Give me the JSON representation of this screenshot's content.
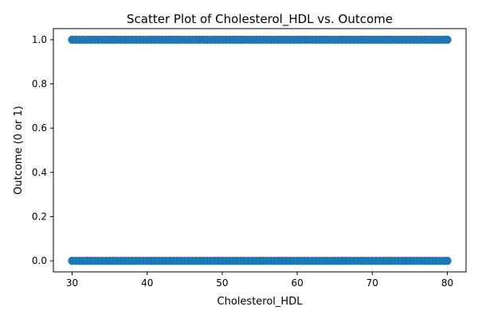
{
  "chart_data": {
    "type": "scatter",
    "title": "Scatter Plot of Cholesterol_HDL vs. Outcome",
    "xlabel": "Cholesterol_HDL",
    "ylabel": "Outcome (0 or 1)",
    "xlim": [
      27.5,
      82.5
    ],
    "ylim": [
      -0.05,
      1.05
    ],
    "xticks": [
      30,
      40,
      50,
      60,
      70,
      80
    ],
    "yticks": [
      0.0,
      0.2,
      0.4,
      0.6,
      0.8,
      1.0
    ],
    "ytick_labels": [
      "0.0",
      "0.2",
      "0.4",
      "0.6",
      "0.8",
      "1.0"
    ],
    "grid": false,
    "marker_color": "#1f77b4",
    "series": [
      {
        "note_range": "points densely cover x from 30 to 80 at both outcome levels",
        "points": [
          [
            30.0,
            0
          ],
          [
            30.5,
            0
          ],
          [
            31.0,
            0
          ],
          [
            31.5,
            0
          ],
          [
            32.0,
            0
          ],
          [
            32.5,
            0
          ],
          [
            33.0,
            0
          ],
          [
            33.5,
            0
          ],
          [
            34.0,
            0
          ],
          [
            34.5,
            0
          ],
          [
            35.0,
            0
          ],
          [
            35.5,
            0
          ],
          [
            36.0,
            0
          ],
          [
            36.5,
            0
          ],
          [
            37.0,
            0
          ],
          [
            37.5,
            0
          ],
          [
            38.0,
            0
          ],
          [
            38.5,
            0
          ],
          [
            39.0,
            0
          ],
          [
            39.5,
            0
          ],
          [
            40.0,
            0
          ],
          [
            40.5,
            0
          ],
          [
            41.0,
            0
          ],
          [
            41.5,
            0
          ],
          [
            42.0,
            0
          ],
          [
            42.5,
            0
          ],
          [
            43.0,
            0
          ],
          [
            43.5,
            0
          ],
          [
            44.0,
            0
          ],
          [
            44.5,
            0
          ],
          [
            45.0,
            0
          ],
          [
            45.5,
            0
          ],
          [
            46.0,
            0
          ],
          [
            46.5,
            0
          ],
          [
            47.0,
            0
          ],
          [
            47.5,
            0
          ],
          [
            48.0,
            0
          ],
          [
            48.5,
            0
          ],
          [
            49.0,
            0
          ],
          [
            49.5,
            0
          ],
          [
            50.0,
            0
          ],
          [
            50.5,
            0
          ],
          [
            51.0,
            0
          ],
          [
            51.5,
            0
          ],
          [
            52.0,
            0
          ],
          [
            52.5,
            0
          ],
          [
            53.0,
            0
          ],
          [
            53.5,
            0
          ],
          [
            54.0,
            0
          ],
          [
            54.5,
            0
          ],
          [
            55.0,
            0
          ],
          [
            55.5,
            0
          ],
          [
            56.0,
            0
          ],
          [
            56.5,
            0
          ],
          [
            57.0,
            0
          ],
          [
            57.5,
            0
          ],
          [
            58.0,
            0
          ],
          [
            58.5,
            0
          ],
          [
            59.0,
            0
          ],
          [
            59.5,
            0
          ],
          [
            60.0,
            0
          ],
          [
            60.5,
            0
          ],
          [
            61.0,
            0
          ],
          [
            61.5,
            0
          ],
          [
            62.0,
            0
          ],
          [
            62.5,
            0
          ],
          [
            63.0,
            0
          ],
          [
            63.5,
            0
          ],
          [
            64.0,
            0
          ],
          [
            64.5,
            0
          ],
          [
            65.0,
            0
          ],
          [
            65.5,
            0
          ],
          [
            66.0,
            0
          ],
          [
            66.5,
            0
          ],
          [
            67.0,
            0
          ],
          [
            67.5,
            0
          ],
          [
            68.0,
            0
          ],
          [
            68.5,
            0
          ],
          [
            69.0,
            0
          ],
          [
            69.5,
            0
          ],
          [
            70.0,
            0
          ],
          [
            70.5,
            0
          ],
          [
            71.0,
            0
          ],
          [
            71.5,
            0
          ],
          [
            72.0,
            0
          ],
          [
            72.5,
            0
          ],
          [
            73.0,
            0
          ],
          [
            73.5,
            0
          ],
          [
            74.0,
            0
          ],
          [
            74.5,
            0
          ],
          [
            75.0,
            0
          ],
          [
            75.5,
            0
          ],
          [
            76.0,
            0
          ],
          [
            76.5,
            0
          ],
          [
            77.0,
            0
          ],
          [
            77.5,
            0
          ],
          [
            78.0,
            0
          ],
          [
            78.5,
            0
          ],
          [
            79.0,
            0
          ],
          [
            79.5,
            0
          ],
          [
            80.0,
            0
          ],
          [
            30.0,
            1
          ],
          [
            30.5,
            1
          ],
          [
            31.0,
            1
          ],
          [
            31.5,
            1
          ],
          [
            32.0,
            1
          ],
          [
            32.5,
            1
          ],
          [
            33.0,
            1
          ],
          [
            33.5,
            1
          ],
          [
            34.0,
            1
          ],
          [
            34.5,
            1
          ],
          [
            35.0,
            1
          ],
          [
            35.5,
            1
          ],
          [
            36.0,
            1
          ],
          [
            36.5,
            1
          ],
          [
            37.0,
            1
          ],
          [
            37.5,
            1
          ],
          [
            38.0,
            1
          ],
          [
            38.5,
            1
          ],
          [
            39.0,
            1
          ],
          [
            39.5,
            1
          ],
          [
            40.0,
            1
          ],
          [
            40.5,
            1
          ],
          [
            41.0,
            1
          ],
          [
            41.5,
            1
          ],
          [
            42.0,
            1
          ],
          [
            42.5,
            1
          ],
          [
            43.0,
            1
          ],
          [
            43.5,
            1
          ],
          [
            44.0,
            1
          ],
          [
            44.5,
            1
          ],
          [
            45.0,
            1
          ],
          [
            45.5,
            1
          ],
          [
            46.0,
            1
          ],
          [
            46.5,
            1
          ],
          [
            47.0,
            1
          ],
          [
            47.5,
            1
          ],
          [
            48.0,
            1
          ],
          [
            48.5,
            1
          ],
          [
            49.0,
            1
          ],
          [
            49.5,
            1
          ],
          [
            50.0,
            1
          ],
          [
            50.5,
            1
          ],
          [
            51.0,
            1
          ],
          [
            51.5,
            1
          ],
          [
            52.0,
            1
          ],
          [
            52.5,
            1
          ],
          [
            53.0,
            1
          ],
          [
            53.5,
            1
          ],
          [
            54.0,
            1
          ],
          [
            54.5,
            1
          ],
          [
            55.0,
            1
          ],
          [
            55.5,
            1
          ],
          [
            56.0,
            1
          ],
          [
            56.5,
            1
          ],
          [
            57.0,
            1
          ],
          [
            57.5,
            1
          ],
          [
            58.0,
            1
          ],
          [
            58.5,
            1
          ],
          [
            59.0,
            1
          ],
          [
            59.5,
            1
          ],
          [
            60.0,
            1
          ],
          [
            60.5,
            1
          ],
          [
            61.0,
            1
          ],
          [
            61.5,
            1
          ],
          [
            62.0,
            1
          ],
          [
            62.5,
            1
          ],
          [
            63.0,
            1
          ],
          [
            63.5,
            1
          ],
          [
            64.0,
            1
          ],
          [
            64.5,
            1
          ],
          [
            65.0,
            1
          ],
          [
            65.5,
            1
          ],
          [
            66.0,
            1
          ],
          [
            66.5,
            1
          ],
          [
            67.0,
            1
          ],
          [
            67.5,
            1
          ],
          [
            68.0,
            1
          ],
          [
            68.5,
            1
          ],
          [
            69.0,
            1
          ],
          [
            69.5,
            1
          ],
          [
            70.0,
            1
          ],
          [
            70.5,
            1
          ],
          [
            71.0,
            1
          ],
          [
            71.5,
            1
          ],
          [
            72.0,
            1
          ],
          [
            72.5,
            1
          ],
          [
            73.0,
            1
          ],
          [
            73.5,
            1
          ],
          [
            74.0,
            1
          ],
          [
            74.5,
            1
          ],
          [
            75.0,
            1
          ],
          [
            75.5,
            1
          ],
          [
            76.0,
            1
          ],
          [
            76.5,
            1
          ],
          [
            77.0,
            1
          ],
          [
            77.5,
            1
          ],
          [
            78.0,
            1
          ],
          [
            78.5,
            1
          ],
          [
            79.0,
            1
          ],
          [
            79.5,
            1
          ],
          [
            80.0,
            1
          ]
        ]
      }
    ]
  }
}
